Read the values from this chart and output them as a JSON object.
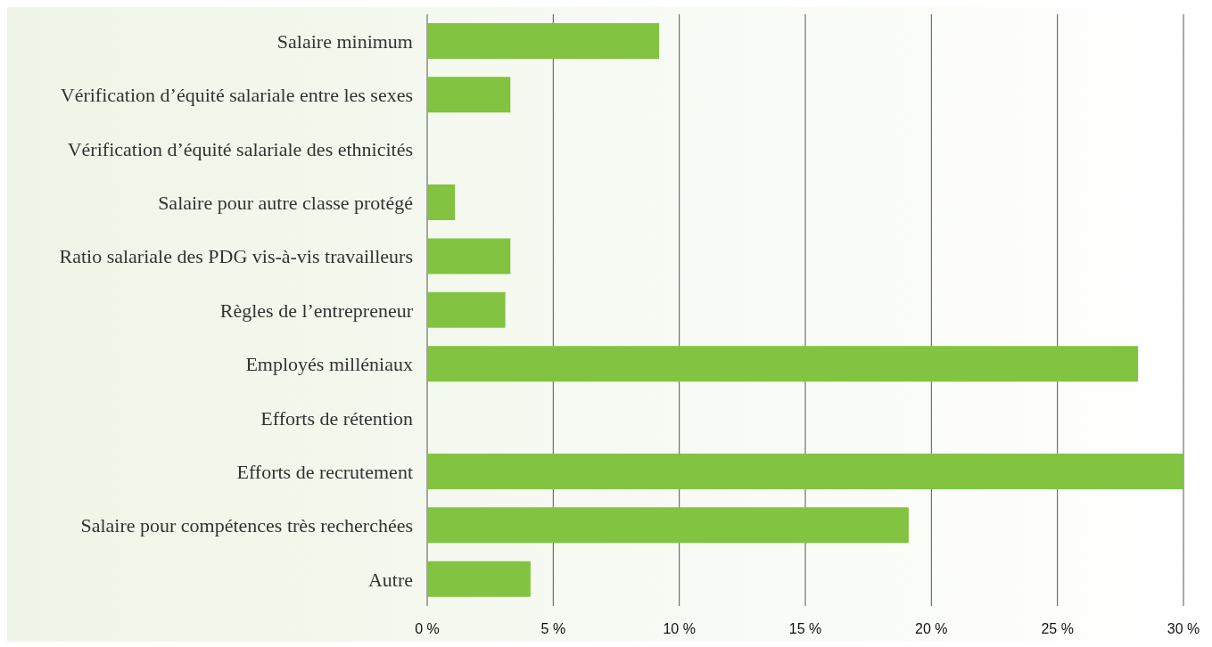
{
  "chart_data": {
    "type": "bar",
    "orientation": "horizontal",
    "categories": [
      "Salaire minimum",
      "Vérification d’équité salariale entre les sexes",
      "Vérification d’équité salariale des ethnicités",
      "Salaire pour autre classe protégé",
      "Ratio salariale des PDG vis-à-vis travailleurs",
      "Règles de l’entrepreneur",
      "Employés milléniaux",
      "Efforts de rétention",
      "Efforts de recrutement",
      "Salaire pour compétences très recherchées",
      "Autre"
    ],
    "values": [
      9.2,
      3.3,
      null,
      1.1,
      3.3,
      3.1,
      28.2,
      null,
      30,
      19.1,
      4.1
    ],
    "color": "#82c341",
    "xlim": [
      0,
      30
    ],
    "xticks": [
      {
        "value": 0,
        "label": "0 %"
      },
      {
        "value": 5,
        "label": "5 %"
      },
      {
        "value": 10,
        "label": "10 %"
      },
      {
        "value": 15,
        "label": "15 %"
      },
      {
        "value": 20,
        "label": "20 %"
      },
      {
        "value": 25,
        "label": "25 %"
      },
      {
        "value": 30,
        "label": "30 %"
      }
    ],
    "grid": "x",
    "legend": false
  }
}
